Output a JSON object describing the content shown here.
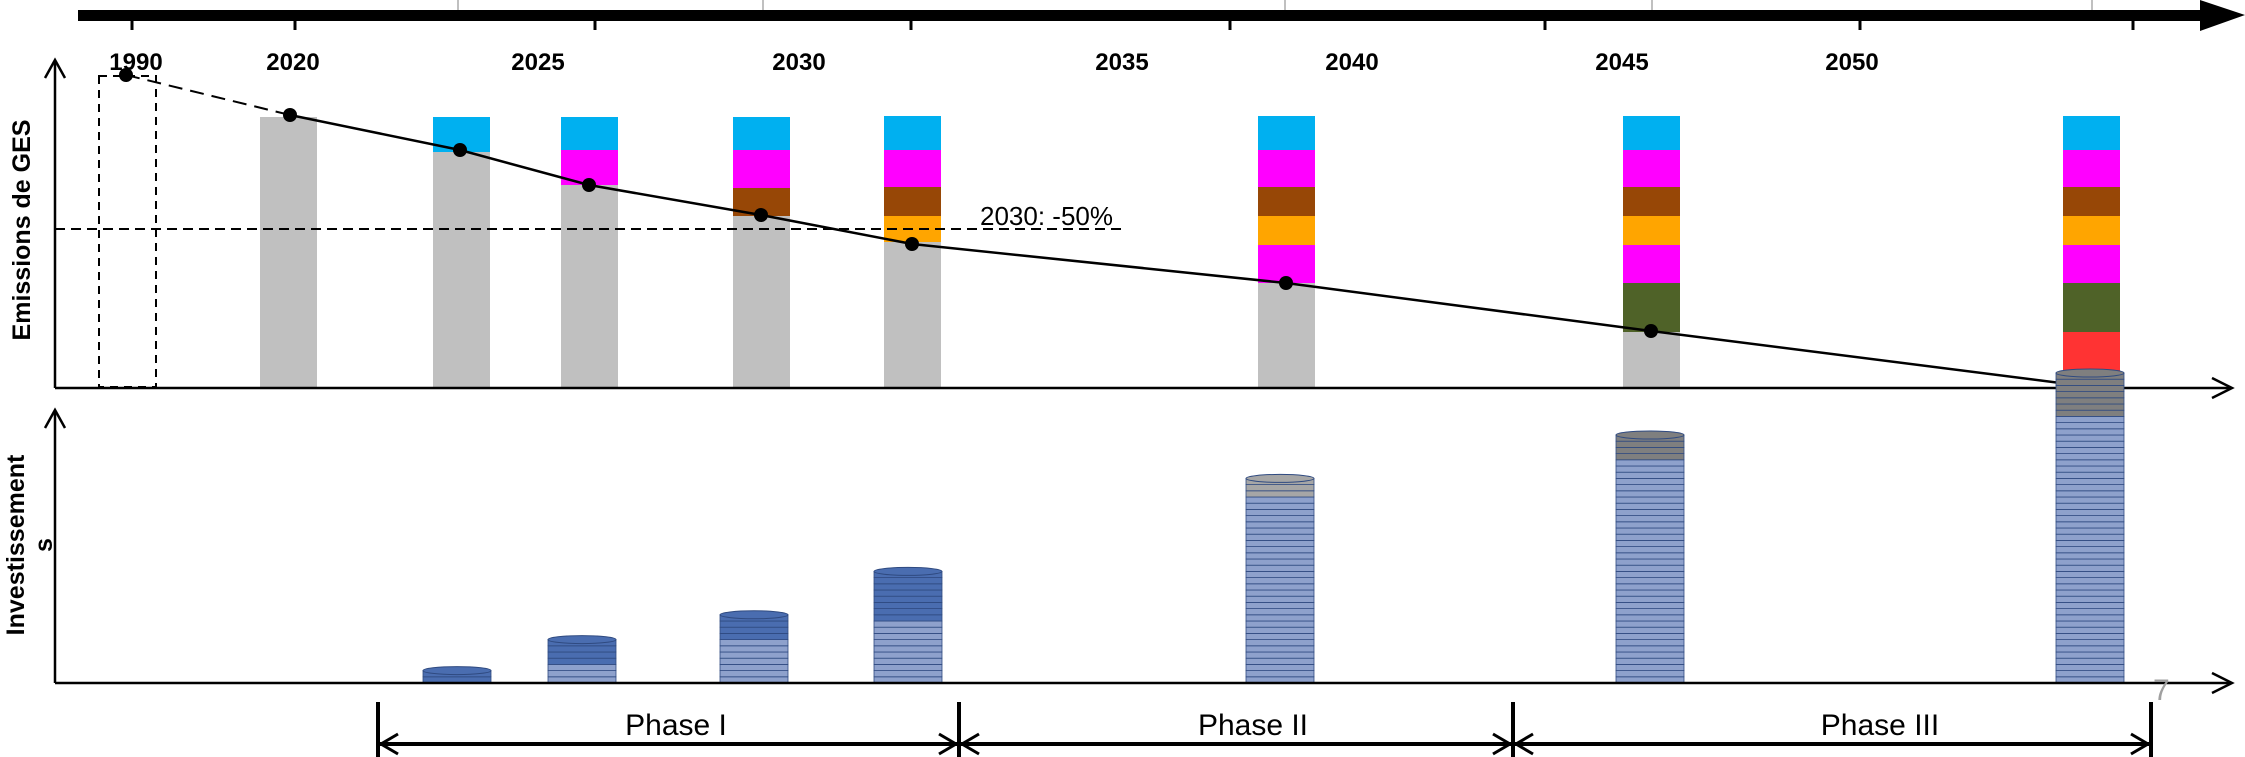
{
  "timeline": {
    "years": [
      "1990",
      "2020",
      "2025",
      "2030",
      "2035",
      "2040",
      "2045",
      "2050"
    ]
  },
  "emissions": {
    "axis_label": "Emissions de GES",
    "target_label": "2030: -50%",
    "colors": {
      "grey": "#c0c0c0",
      "cyan": "#00b0f0",
      "magenta": "#ff00ff",
      "brown": "#974706",
      "orange": "#ffa500",
      "green": "#4f6228",
      "red": "#ff3333"
    }
  },
  "investments": {
    "axis_label_line1": "Investissement",
    "axis_label_line2": "s",
    "colors": {
      "coin_light": "#8ea1cc",
      "coin_dark": "#4a6db0",
      "coin_grey": "#a6a6a6",
      "coin_darkgrey": "#7f7f7f",
      "coin_edge": "#2f4a80"
    }
  },
  "phases": [
    {
      "label": "Phase I"
    },
    {
      "label": "Phase II"
    },
    {
      "label": "Phase III"
    }
  ],
  "page_number": "7"
}
